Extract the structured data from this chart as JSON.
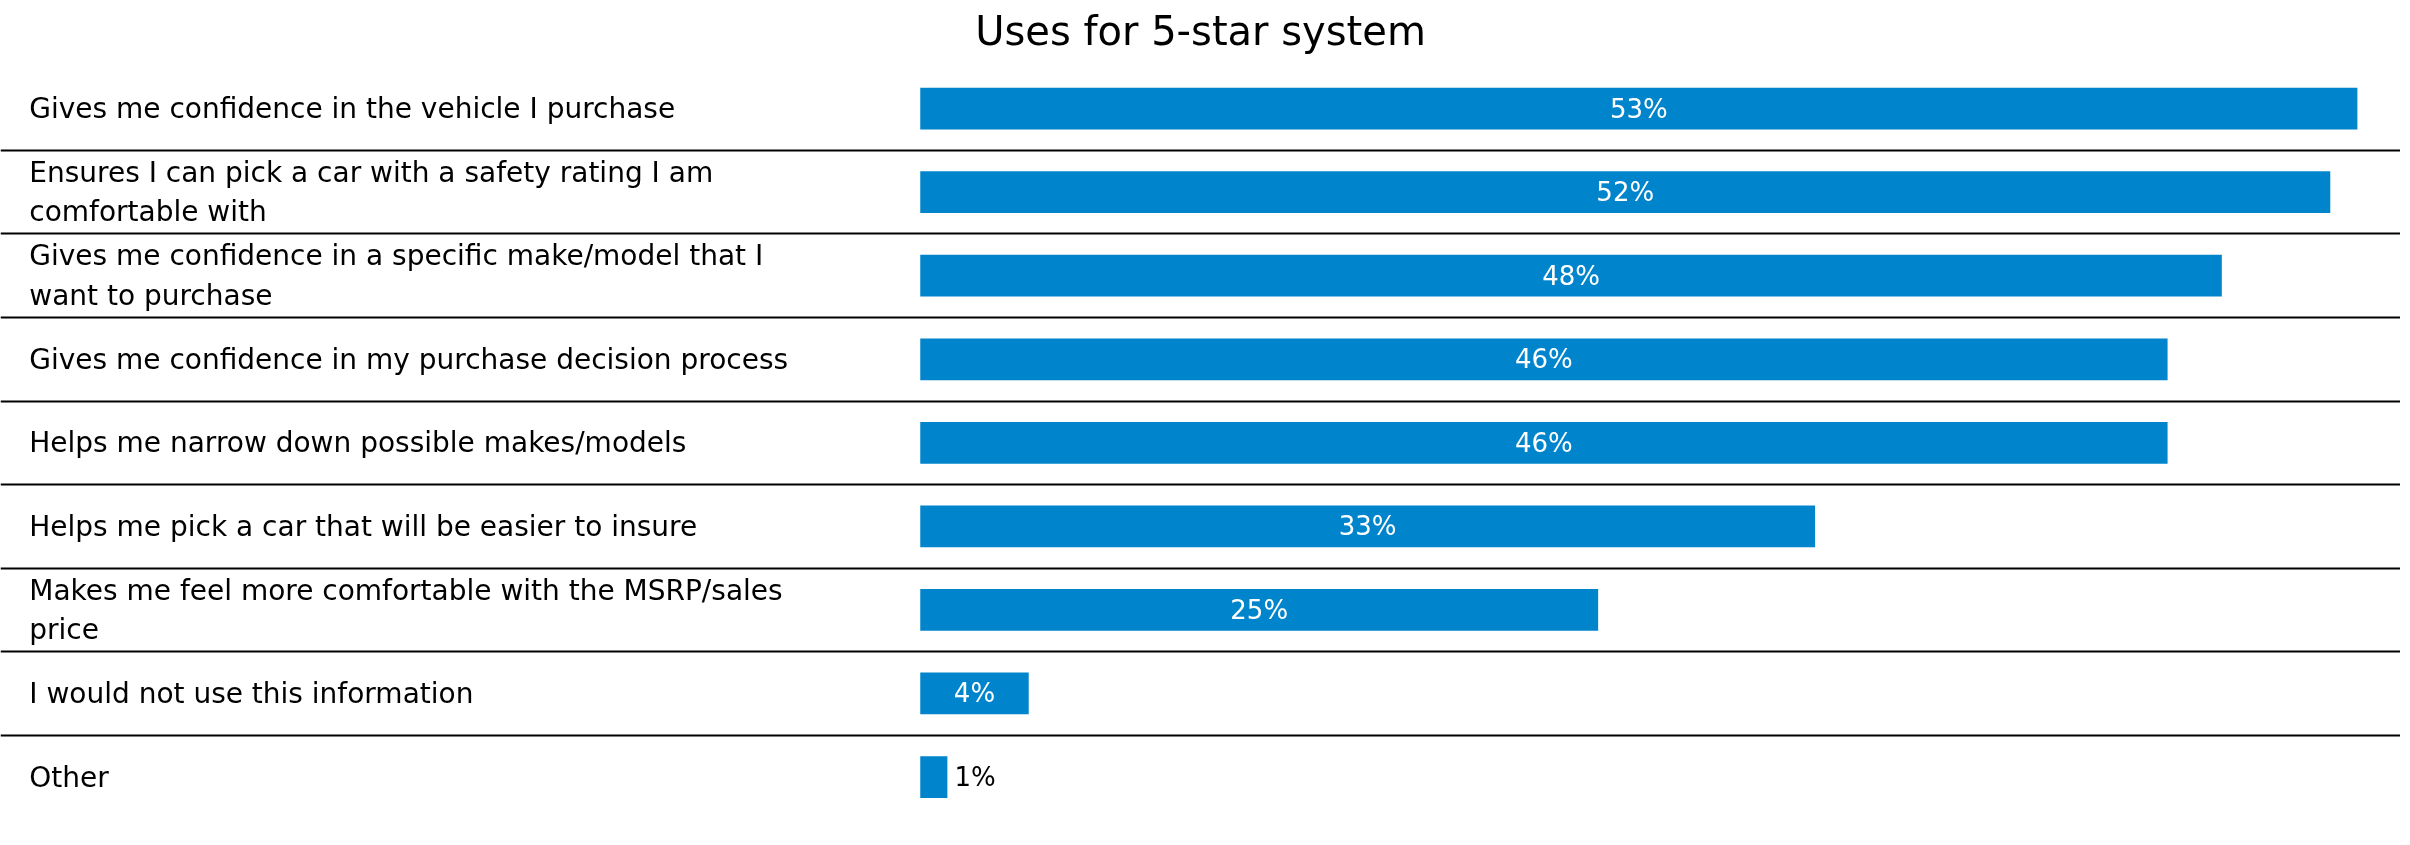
{
  "chart_data": {
    "type": "bar",
    "orientation": "horizontal",
    "title": "Uses for 5-star system",
    "categories": [
      "Gives me confidence in the vehicle I purchase",
      "Ensures I can pick a car with a safety rating I am comfortable with",
      "Gives me confidence in a specific make/model that I want to purchase",
      "Gives me confidence in my purchase decision process",
      "Helps me narrow down possible makes/models",
      "Helps me pick a car that will be easier to insure",
      "Makes me feel more comfortable with the MSRP/sales price",
      "I would not use this information",
      "Other"
    ],
    "values": [
      53,
      52,
      48,
      46,
      46,
      33,
      25,
      4,
      1
    ],
    "value_labels": [
      "53%",
      "52%",
      "48%",
      "46%",
      "46%",
      "33%",
      "25%",
      "4%",
      "1%"
    ],
    "color": "#0084cc",
    "grid": "y"
  }
}
